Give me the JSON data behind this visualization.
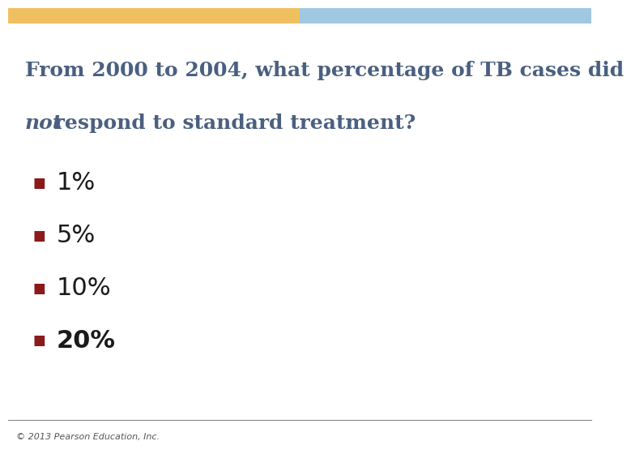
{
  "title_line1": "From 2000 to 2004, what percentage of TB cases did",
  "title_line2_normal": " respond to standard treatment?",
  "title_line2_italic": "not",
  "title_color": "#4a6080",
  "background_color": "#ffffff",
  "header_gradient_left": "#f0c060",
  "header_gradient_right": "#a0c8e0",
  "bullet_color": "#8b1a1a",
  "bullet_symbol": "■",
  "options": [
    "1%",
    "5%",
    "10%",
    "20%"
  ],
  "option_bold": [
    false,
    false,
    false,
    true
  ],
  "option_color": "#1a1a1a",
  "option_fontsize": 22,
  "footer_text": "© 2013 Pearson Education, Inc.",
  "footer_color": "#555555",
  "footer_fontsize": 8,
  "footer_line_color": "#888888"
}
